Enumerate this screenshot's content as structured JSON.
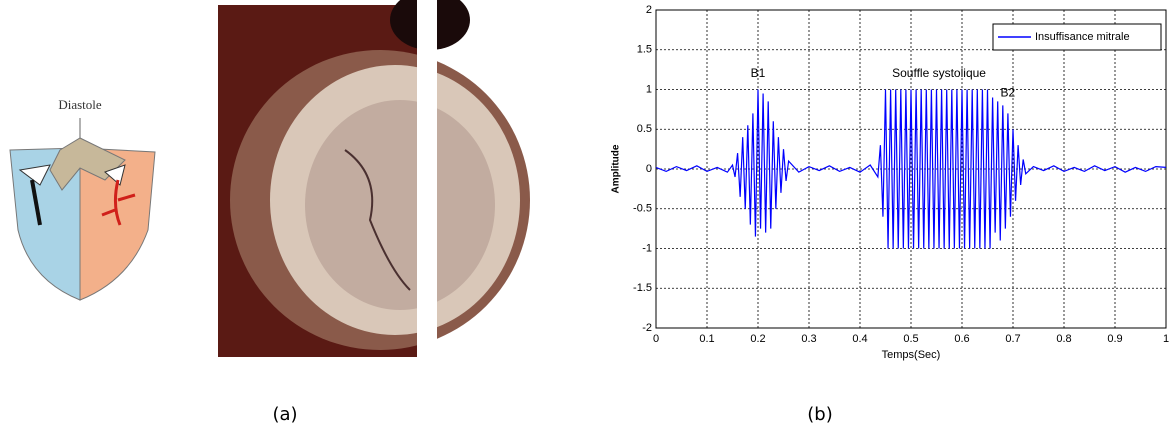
{
  "figure": {
    "diastole_label": "Diastole",
    "captions": [
      "(a)",
      "(b)"
    ]
  },
  "chart_data": {
    "type": "line",
    "xlabel": "Temps(Sec)",
    "ylabel": "Amplitude",
    "annotations": [
      "B1",
      "Souffle systolique",
      "B2"
    ],
    "x": [
      0,
      0.02,
      0.04,
      0.06,
      0.08,
      0.1,
      0.12,
      0.14,
      0.15,
      0.155,
      0.16,
      0.165,
      0.17,
      0.175,
      0.18,
      0.185,
      0.19,
      0.195,
      0.2,
      0.205,
      0.21,
      0.215,
      0.22,
      0.225,
      0.23,
      0.235,
      0.24,
      0.245,
      0.25,
      0.255,
      0.26,
      0.28,
      0.3,
      0.32,
      0.34,
      0.36,
      0.38,
      0.4,
      0.42,
      0.435,
      0.44,
      0.445,
      0.45,
      0.455,
      0.46,
      0.465,
      0.47,
      0.475,
      0.48,
      0.485,
      0.49,
      0.495,
      0.5,
      0.505,
      0.51,
      0.515,
      0.52,
      0.525,
      0.53,
      0.535,
      0.54,
      0.545,
      0.55,
      0.555,
      0.56,
      0.565,
      0.57,
      0.575,
      0.58,
      0.585,
      0.59,
      0.595,
      0.6,
      0.605,
      0.61,
      0.615,
      0.62,
      0.625,
      0.63,
      0.635,
      0.64,
      0.645,
      0.65,
      0.655,
      0.66,
      0.665,
      0.67,
      0.675,
      0.68,
      0.685,
      0.69,
      0.695,
      0.7,
      0.705,
      0.71,
      0.715,
      0.72,
      0.725,
      0.74,
      0.76,
      0.78,
      0.8,
      0.82,
      0.84,
      0.86,
      0.88,
      0.9,
      0.92,
      0.94,
      0.96,
      0.98,
      1
    ],
    "series": [
      {
        "name": "Insuffisance mitrale",
        "color": "#0000ff",
        "values": [
          0.02,
          -0.03,
          0.03,
          -0.02,
          0.04,
          -0.03,
          0.02,
          -0.04,
          0.05,
          -0.1,
          0.2,
          -0.35,
          0.4,
          -0.5,
          0.55,
          -0.7,
          0.7,
          -0.85,
          1,
          -0.75,
          0.95,
          -0.8,
          0.85,
          -0.75,
          0.6,
          -0.5,
          0.4,
          -0.3,
          0.25,
          -0.15,
          0.1,
          -0.04,
          0.03,
          -0.02,
          0.04,
          -0.03,
          0.02,
          -0.04,
          0.05,
          -0.1,
          0.3,
          -0.6,
          1,
          -1,
          1,
          -1,
          1,
          -1,
          1,
          -1,
          1,
          -1,
          1,
          -1,
          1,
          -1,
          1,
          -1,
          1,
          -1,
          1,
          -1,
          1,
          -1,
          1,
          -1,
          1,
          -1,
          1,
          -1,
          1,
          -1,
          1,
          -1,
          1,
          -1,
          1,
          -1,
          1,
          -1,
          1,
          -1,
          1,
          -1,
          0.9,
          -0.8,
          0.85,
          -0.9,
          0.8,
          -0.75,
          0.7,
          -0.6,
          0.5,
          -0.4,
          0.3,
          -0.2,
          0.12,
          -0.06,
          0.03,
          -0.02,
          0.04,
          -0.03,
          0.02,
          -0.03,
          0.04,
          -0.02,
          0.03,
          -0.04,
          0.02,
          -0.03,
          0.03,
          0.02
        ]
      }
    ],
    "xlim": [
      0,
      1
    ],
    "ylim": [
      -2,
      2
    ],
    "xticks": [
      0,
      0.1,
      0.2,
      0.3,
      0.4,
      0.5,
      0.6,
      0.7,
      0.8,
      0.9,
      1
    ],
    "yticks": [
      -2,
      -1.5,
      -1,
      -0.5,
      0,
      0.5,
      1,
      1.5,
      2
    ],
    "grid": true,
    "legend": "upper-right"
  }
}
